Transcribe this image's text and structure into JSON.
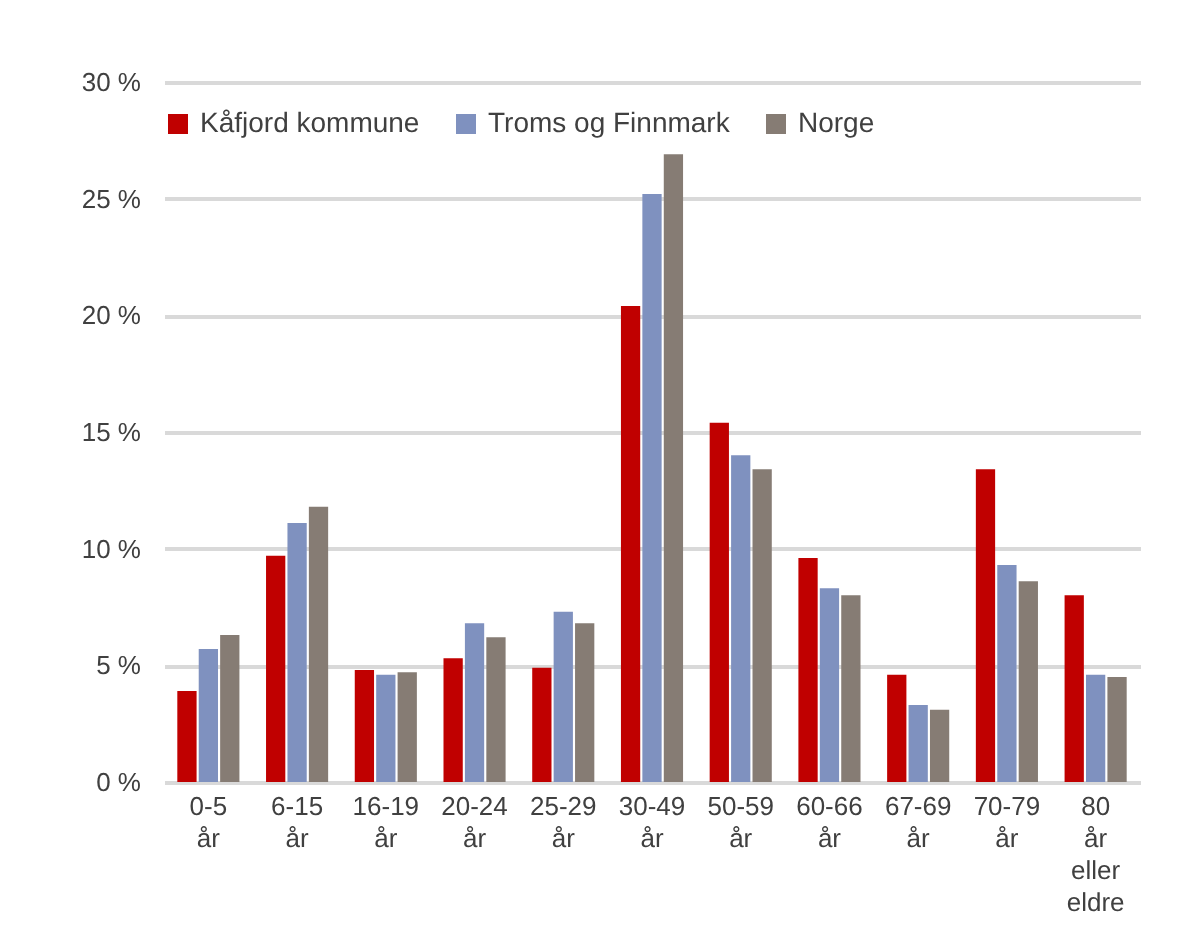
{
  "chart_data": {
    "type": "bar",
    "categories": [
      "0-5 år",
      "6-15 år",
      "16-19 år",
      "20-24 år",
      "25-29 år",
      "30-49 år",
      "50-59 år",
      "60-66 år",
      "67-69 år",
      "70-79 år",
      "80 år eller eldre"
    ],
    "series": [
      {
        "name": "Kåfjord kommune",
        "color": "#c00000",
        "values": [
          3.9,
          9.7,
          4.8,
          5.3,
          4.9,
          20.4,
          15.4,
          9.6,
          4.6,
          13.4,
          8.0
        ]
      },
      {
        "name": "Troms og Finnmark",
        "color": "#7f91bf",
        "values": [
          5.7,
          11.1,
          4.6,
          6.8,
          7.3,
          25.2,
          14.0,
          8.3,
          3.3,
          9.3,
          4.6
        ]
      },
      {
        "name": "Norge",
        "color": "#867c74",
        "values": [
          6.3,
          11.8,
          4.7,
          6.2,
          6.8,
          26.9,
          13.4,
          8.0,
          3.1,
          8.6,
          4.5
        ]
      }
    ],
    "ylim": [
      0,
      30
    ],
    "yticks": [
      {
        "value": 0,
        "label": "0 %"
      },
      {
        "value": 5,
        "label": "5 %"
      },
      {
        "value": 10,
        "label": "10 %"
      },
      {
        "value": 15,
        "label": "15 %"
      },
      {
        "value": 20,
        "label": "20 %"
      },
      {
        "value": 25,
        "label": "25 %"
      },
      {
        "value": 30,
        "label": "30 %"
      }
    ],
    "grid": "y",
    "legend": "top"
  }
}
